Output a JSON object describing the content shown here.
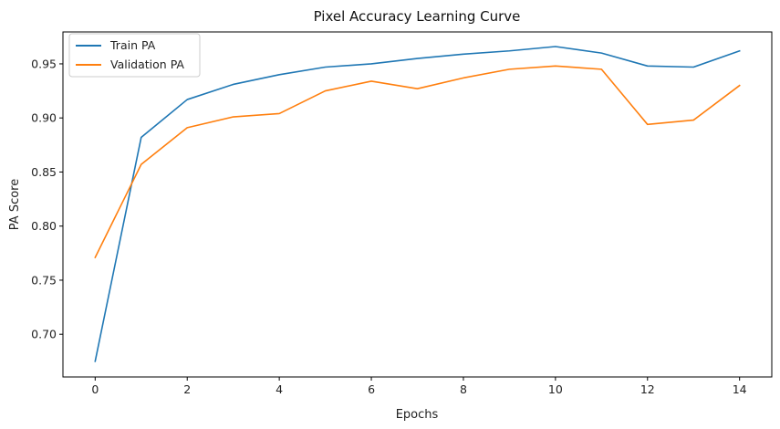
{
  "chart_data": {
    "type": "line",
    "title": "Pixel Accuracy Learning Curve",
    "xlabel": "Epochs",
    "ylabel": "PA Score",
    "x": [
      0,
      1,
      2,
      3,
      4,
      5,
      6,
      7,
      8,
      9,
      10,
      11,
      12,
      13,
      14
    ],
    "xlim": [
      -0.7,
      14.7
    ],
    "ylim": [
      0.6605,
      0.9795
    ],
    "xticks": [
      "0",
      "2",
      "4",
      "6",
      "8",
      "10",
      "12",
      "14"
    ],
    "yticks": [
      "0.70",
      "0.75",
      "0.80",
      "0.85",
      "0.90",
      "0.95"
    ],
    "grid": false,
    "legend_position": "upper-left",
    "series": [
      {
        "name": "Train PA",
        "color": "#1f77b4",
        "values": [
          0.675,
          0.882,
          0.917,
          0.931,
          0.94,
          0.947,
          0.95,
          0.955,
          0.959,
          0.962,
          0.966,
          0.96,
          0.948,
          0.947,
          0.962
        ]
      },
      {
        "name": "Validation PA",
        "color": "#ff7f0e",
        "values": [
          0.771,
          0.857,
          0.891,
          0.901,
          0.904,
          0.925,
          0.934,
          0.927,
          0.937,
          0.945,
          0.948,
          0.945,
          0.894,
          0.898,
          0.93
        ]
      }
    ]
  }
}
